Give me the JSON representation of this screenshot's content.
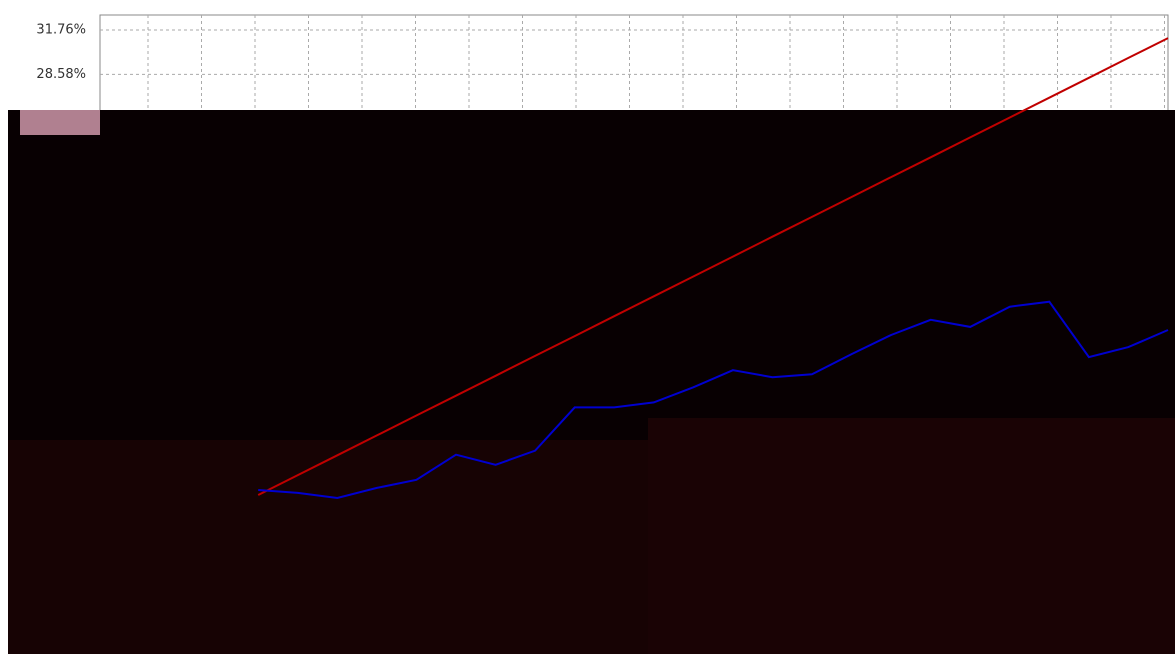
{
  "chart_data": {
    "type": "line",
    "categories": [
      null,
      null,
      null,
      null,
      null,
      null,
      null,
      null,
      null,
      null,
      null,
      null,
      null,
      null,
      null,
      null,
      null,
      null,
      null,
      null,
      null,
      null,
      null,
      null,
      null,
      null,
      null,
      null
    ],
    "series": [
      {
        "color": "#c00000",
        "values": [
          null,
          null,
          null,
          null,
          -1.63,
          -0.2,
          1.22,
          2.65,
          4.08,
          5.5,
          6.93,
          8.36,
          9.78,
          11.21,
          12.64,
          14.06,
          15.49,
          16.92,
          18.34,
          19.77,
          21.2,
          22.62,
          24.05,
          25.48,
          26.9,
          28.33,
          29.76,
          31.18
        ]
      },
      {
        "color": "#0000d0",
        "values": [
          null,
          null,
          null,
          null,
          -1.27,
          -1.48,
          -1.85,
          -1.12,
          -0.54,
          1.26,
          0.54,
          1.55,
          4.66,
          4.66,
          5.02,
          6.1,
          7.33,
          6.83,
          7.04,
          8.49,
          9.86,
          10.95,
          10.44,
          11.89,
          12.25,
          8.27,
          8.99,
          10.22
        ]
      }
    ],
    "ylim": [
      -13.05,
      32.84
    ],
    "yticks": [
      {
        "value": 31.76,
        "label": "31.76%"
      },
      {
        "value": 28.58,
        "label": "28.58%"
      }
    ],
    "grid": true
  }
}
